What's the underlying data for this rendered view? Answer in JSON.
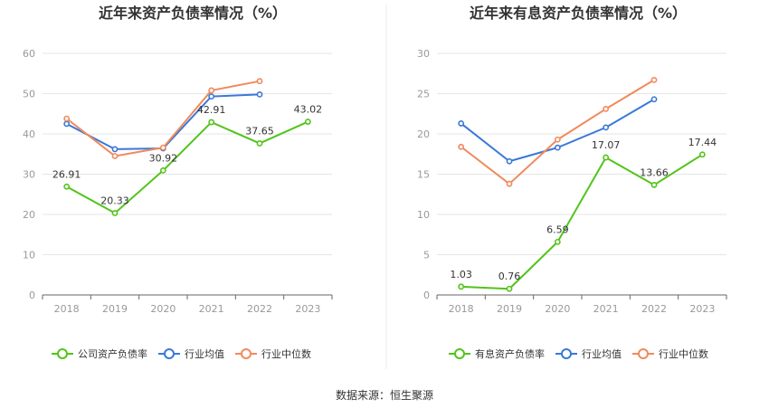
{
  "source_text": "数据来源：恒生聚源",
  "chart_data": [
    {
      "type": "line",
      "title": "近年来资产负债率情况（%）",
      "categories": [
        "2018",
        "2019",
        "2020",
        "2021",
        "2022",
        "2023"
      ],
      "yticks": [
        "0",
        "10",
        "20",
        "30",
        "40",
        "50",
        "60"
      ],
      "ylim": [
        0,
        60
      ],
      "grid": true,
      "legend_position": "bottom",
      "series": [
        {
          "name": "公司资产负债率",
          "color": "#52c41a",
          "values": [
            26.91,
            20.33,
            30.92,
            42.91,
            37.65,
            43.02
          ],
          "labels": [
            "26.91",
            "20.33",
            "30.92",
            "42.91",
            "37.65",
            "43.02"
          ]
        },
        {
          "name": "行业均值",
          "color": "#3a78d8",
          "values": [
            42.5,
            36.2,
            36.4,
            49.3,
            49.8,
            null
          ]
        },
        {
          "name": "行业中位数",
          "color": "#f08a5d",
          "values": [
            43.8,
            34.5,
            36.6,
            50.8,
            53.1,
            null
          ]
        }
      ]
    },
    {
      "type": "line",
      "title": "近年来有息资产负债率情况（%）",
      "categories": [
        "2018",
        "2019",
        "2020",
        "2021",
        "2022",
        "2023"
      ],
      "yticks": [
        "0",
        "5",
        "10",
        "15",
        "20",
        "25",
        "30"
      ],
      "ylim": [
        0,
        30
      ],
      "grid": true,
      "legend_position": "bottom",
      "series": [
        {
          "name": "有息资产负债率",
          "color": "#52c41a",
          "values": [
            1.03,
            0.76,
            6.59,
            17.07,
            13.66,
            17.44
          ],
          "labels": [
            "1.03",
            "0.76",
            "6.59",
            "17.07",
            "13.66",
            "17.44"
          ]
        },
        {
          "name": "行业均值",
          "color": "#3a78d8",
          "values": [
            21.3,
            16.6,
            18.3,
            20.8,
            24.3,
            null
          ]
        },
        {
          "name": "行业中位数",
          "color": "#f08a5d",
          "values": [
            18.4,
            13.8,
            19.3,
            23.1,
            26.7,
            null
          ]
        }
      ]
    }
  ]
}
